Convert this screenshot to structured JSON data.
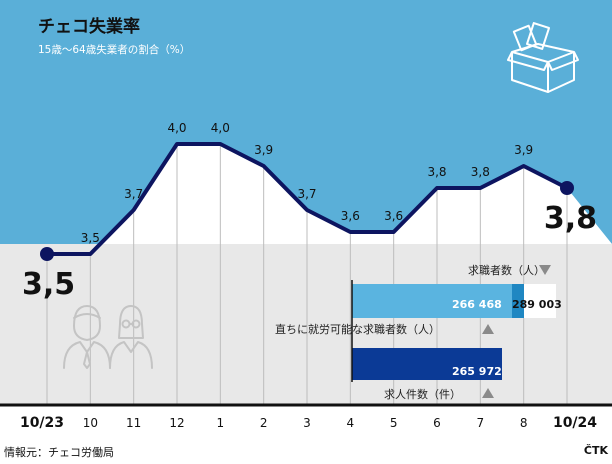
{
  "header": {
    "title": "チェコ失業率",
    "subtitle": "15歳～64歳失業者の割合（%）"
  },
  "footer": {
    "source": "情報元：チェコ労働局",
    "credit": "ČTK"
  },
  "colors": {
    "sky": "#5aafd8",
    "band": "#e8e8e8",
    "line": "#0d1560",
    "bar_light": "#5ab4e0",
    "bar_mid": "#1f87c2",
    "bar_dark": "#0b3a96"
  },
  "chart_data": [
    {
      "type": "line",
      "x": [
        "10/23",
        "10",
        "11",
        "12",
        "1",
        "2",
        "3",
        "4",
        "5",
        "6",
        "7",
        "8",
        "10/24"
      ],
      "values": [
        3.5,
        3.5,
        3.7,
        4.0,
        4.0,
        3.9,
        3.7,
        3.6,
        3.6,
        3.8,
        3.8,
        3.9,
        3.8
      ],
      "value_labels": [
        "3,5",
        "3,5",
        "3,7",
        "4,0",
        "4,0",
        "3,9",
        "3,7",
        "3,6",
        "3,6",
        "3,8",
        "3,8",
        "3,9",
        "3,8"
      ],
      "ylim": [
        3.2,
        4.2
      ],
      "grid": "vertical"
    },
    {
      "type": "bar",
      "categories": [
        "求職者数（人）",
        "直ちに就労可能な求職者数（人）",
        "求人件数（件）"
      ],
      "values": [
        289003,
        266468,
        265972
      ],
      "value_labels": [
        "289 003",
        "266 468",
        "265 972"
      ],
      "trend": [
        "down",
        "up",
        "up"
      ]
    }
  ]
}
